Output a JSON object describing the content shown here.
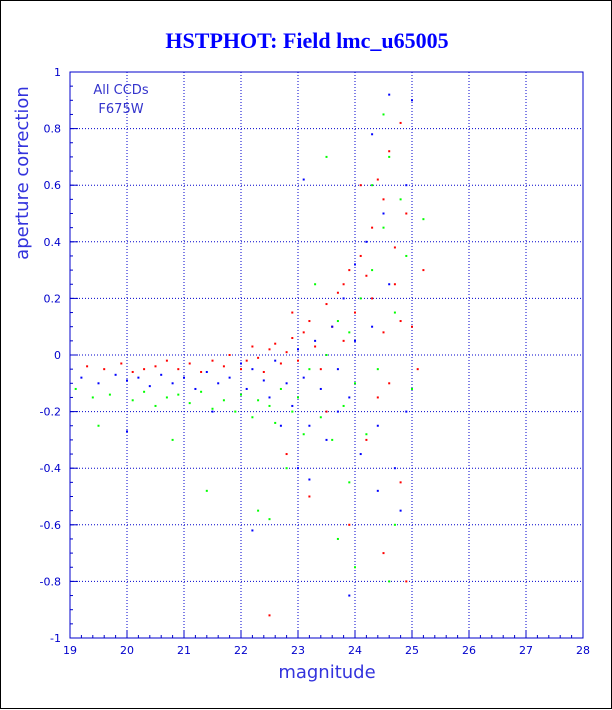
{
  "chart_data": {
    "type": "scatter",
    "title": "HSTPHOT: Field lmc_u65005",
    "xlabel": "magnitude",
    "ylabel": "aperture correction",
    "xlim": [
      19,
      28
    ],
    "ylim": [
      -1,
      1
    ],
    "x_ticks": [
      "19",
      "20",
      "21",
      "22",
      "23",
      "24",
      "25",
      "26",
      "27",
      "28"
    ],
    "y_ticks": [
      "-1",
      "-0.8",
      "-0.6",
      "-0.4",
      "-0.2",
      "0",
      "0.2",
      "0.4",
      "0.6",
      "0.8",
      "1"
    ],
    "annotations": [
      "All CCDs",
      "F675W"
    ],
    "grid": true,
    "series": [
      {
        "color": "#ff0000",
        "points": [
          [
            19.3,
            -0.04
          ],
          [
            19.6,
            -0.05
          ],
          [
            19.9,
            -0.03
          ],
          [
            20.1,
            -0.06
          ],
          [
            20.3,
            -0.05
          ],
          [
            20.5,
            -0.04
          ],
          [
            20.7,
            -0.02
          ],
          [
            20.9,
            -0.05
          ],
          [
            21.1,
            -0.03
          ],
          [
            21.3,
            -0.06
          ],
          [
            21.5,
            -0.02
          ],
          [
            21.7,
            -0.04
          ],
          [
            21.8,
            0.0
          ],
          [
            22.0,
            -0.05
          ],
          [
            22.1,
            -0.02
          ],
          [
            22.2,
            0.03
          ],
          [
            22.3,
            -0.01
          ],
          [
            22.4,
            -0.06
          ],
          [
            22.5,
            0.02
          ],
          [
            22.6,
            0.04
          ],
          [
            22.7,
            -0.03
          ],
          [
            22.8,
            0.01
          ],
          [
            22.9,
            0.06
          ],
          [
            23.0,
            -0.02
          ],
          [
            23.1,
            0.08
          ],
          [
            23.2,
            0.12
          ],
          [
            23.3,
            0.03
          ],
          [
            23.4,
            -0.05
          ],
          [
            23.5,
            0.18
          ],
          [
            23.6,
            0.1
          ],
          [
            23.7,
            0.22
          ],
          [
            23.8,
            0.05
          ],
          [
            23.9,
            0.3
          ],
          [
            24.0,
            0.15
          ],
          [
            24.1,
            0.35
          ],
          [
            24.2,
            0.28
          ],
          [
            24.3,
            0.45
          ],
          [
            24.4,
            0.62
          ],
          [
            24.5,
            0.55
          ],
          [
            24.6,
            0.72
          ],
          [
            24.7,
            0.38
          ],
          [
            24.8,
            0.82
          ],
          [
            24.3,
            0.2
          ],
          [
            24.5,
            0.08
          ],
          [
            24.6,
            -0.1
          ],
          [
            24.7,
            0.25
          ],
          [
            24.9,
            0.5
          ],
          [
            25.0,
            0.1
          ],
          [
            25.1,
            -0.05
          ],
          [
            25.2,
            0.3
          ],
          [
            24.2,
            -0.3
          ],
          [
            24.8,
            -0.45
          ],
          [
            23.5,
            -0.2
          ],
          [
            22.8,
            -0.35
          ],
          [
            23.9,
            -0.6
          ],
          [
            24.5,
            -0.7
          ],
          [
            24.9,
            -0.8
          ],
          [
            22.5,
            -0.92
          ],
          [
            23.2,
            -0.5
          ],
          [
            24.1,
            0.6
          ],
          [
            24.8,
            0.12
          ],
          [
            23.8,
            0.25
          ],
          [
            22.9,
            0.15
          ],
          [
            24.4,
            -0.15
          ]
        ]
      },
      {
        "color": "#0000ff",
        "points": [
          [
            19.2,
            -0.08
          ],
          [
            19.5,
            -0.1
          ],
          [
            19.8,
            -0.07
          ],
          [
            20.0,
            -0.09
          ],
          [
            20.2,
            -0.08
          ],
          [
            20.4,
            -0.11
          ],
          [
            20.6,
            -0.07
          ],
          [
            20.8,
            -0.1
          ],
          [
            21.0,
            -0.08
          ],
          [
            21.2,
            -0.12
          ],
          [
            21.4,
            -0.06
          ],
          [
            21.6,
            -0.1
          ],
          [
            21.8,
            -0.08
          ],
          [
            22.0,
            -0.03
          ],
          [
            22.1,
            -0.12
          ],
          [
            22.2,
            -0.05
          ],
          [
            22.4,
            -0.09
          ],
          [
            22.5,
            -0.15
          ],
          [
            22.6,
            -0.02
          ],
          [
            22.8,
            -0.1
          ],
          [
            22.9,
            -0.18
          ],
          [
            23.0,
            0.02
          ],
          [
            23.1,
            -0.08
          ],
          [
            23.2,
            -0.25
          ],
          [
            23.3,
            0.05
          ],
          [
            23.4,
            -0.12
          ],
          [
            23.5,
            -0.3
          ],
          [
            23.6,
            0.1
          ],
          [
            23.7,
            -0.2
          ],
          [
            23.8,
            0.2
          ],
          [
            23.9,
            -0.15
          ],
          [
            24.0,
            0.32
          ],
          [
            24.1,
            -0.35
          ],
          [
            24.2,
            0.4
          ],
          [
            24.3,
            0.1
          ],
          [
            24.4,
            -0.25
          ],
          [
            24.5,
            0.5
          ],
          [
            24.6,
            0.25
          ],
          [
            24.7,
            -0.4
          ],
          [
            24.9,
            0.6
          ],
          [
            25.0,
            0.9
          ],
          [
            24.6,
            0.92
          ],
          [
            24.3,
            0.78
          ],
          [
            23.1,
            0.62
          ],
          [
            23.0,
            -0.4
          ],
          [
            23.2,
            -0.44
          ],
          [
            23.9,
            -0.85
          ],
          [
            24.8,
            -0.55
          ],
          [
            22.2,
            -0.62
          ],
          [
            21.5,
            -0.2
          ],
          [
            20.0,
            -0.27
          ],
          [
            24.4,
            -0.48
          ],
          [
            24.0,
            0.05
          ],
          [
            23.7,
            -0.05
          ],
          [
            22.7,
            -0.25
          ],
          [
            24.9,
            -0.2
          ]
        ]
      },
      {
        "color": "#00ff00",
        "points": [
          [
            19.1,
            -0.12
          ],
          [
            19.4,
            -0.15
          ],
          [
            19.7,
            -0.14
          ],
          [
            20.1,
            -0.16
          ],
          [
            20.3,
            -0.13
          ],
          [
            20.5,
            -0.18
          ],
          [
            20.7,
            -0.15
          ],
          [
            20.9,
            -0.14
          ],
          [
            21.1,
            -0.17
          ],
          [
            21.3,
            -0.13
          ],
          [
            21.5,
            -0.19
          ],
          [
            21.7,
            -0.16
          ],
          [
            21.9,
            -0.2
          ],
          [
            22.0,
            -0.14
          ],
          [
            22.2,
            -0.22
          ],
          [
            22.3,
            -0.16
          ],
          [
            22.5,
            -0.18
          ],
          [
            22.6,
            -0.24
          ],
          [
            22.7,
            -0.12
          ],
          [
            22.9,
            -0.2
          ],
          [
            23.0,
            -0.15
          ],
          [
            23.1,
            -0.28
          ],
          [
            23.2,
            -0.05
          ],
          [
            23.4,
            -0.22
          ],
          [
            23.5,
            0.0
          ],
          [
            23.6,
            -0.3
          ],
          [
            23.7,
            0.12
          ],
          [
            23.8,
            -0.18
          ],
          [
            23.9,
            0.08
          ],
          [
            24.0,
            -0.1
          ],
          [
            24.1,
            0.2
          ],
          [
            24.2,
            -0.28
          ],
          [
            24.3,
            0.3
          ],
          [
            24.4,
            -0.05
          ],
          [
            24.5,
            0.45
          ],
          [
            24.6,
            0.7
          ],
          [
            24.7,
            0.15
          ],
          [
            24.8,
            0.55
          ],
          [
            24.9,
            0.35
          ],
          [
            25.0,
            -0.12
          ],
          [
            25.2,
            0.48
          ],
          [
            24.5,
            0.85
          ],
          [
            23.5,
            0.7
          ],
          [
            22.3,
            -0.55
          ],
          [
            22.5,
            -0.58
          ],
          [
            23.7,
            -0.65
          ],
          [
            24.0,
            -0.75
          ],
          [
            24.6,
            -0.8
          ],
          [
            21.4,
            -0.48
          ],
          [
            19.5,
            -0.25
          ],
          [
            20.8,
            -0.3
          ],
          [
            23.3,
            0.25
          ],
          [
            24.3,
            0.6
          ],
          [
            23.9,
            -0.45
          ],
          [
            22.8,
            -0.4
          ],
          [
            24.7,
            -0.6
          ]
        ]
      }
    ]
  }
}
